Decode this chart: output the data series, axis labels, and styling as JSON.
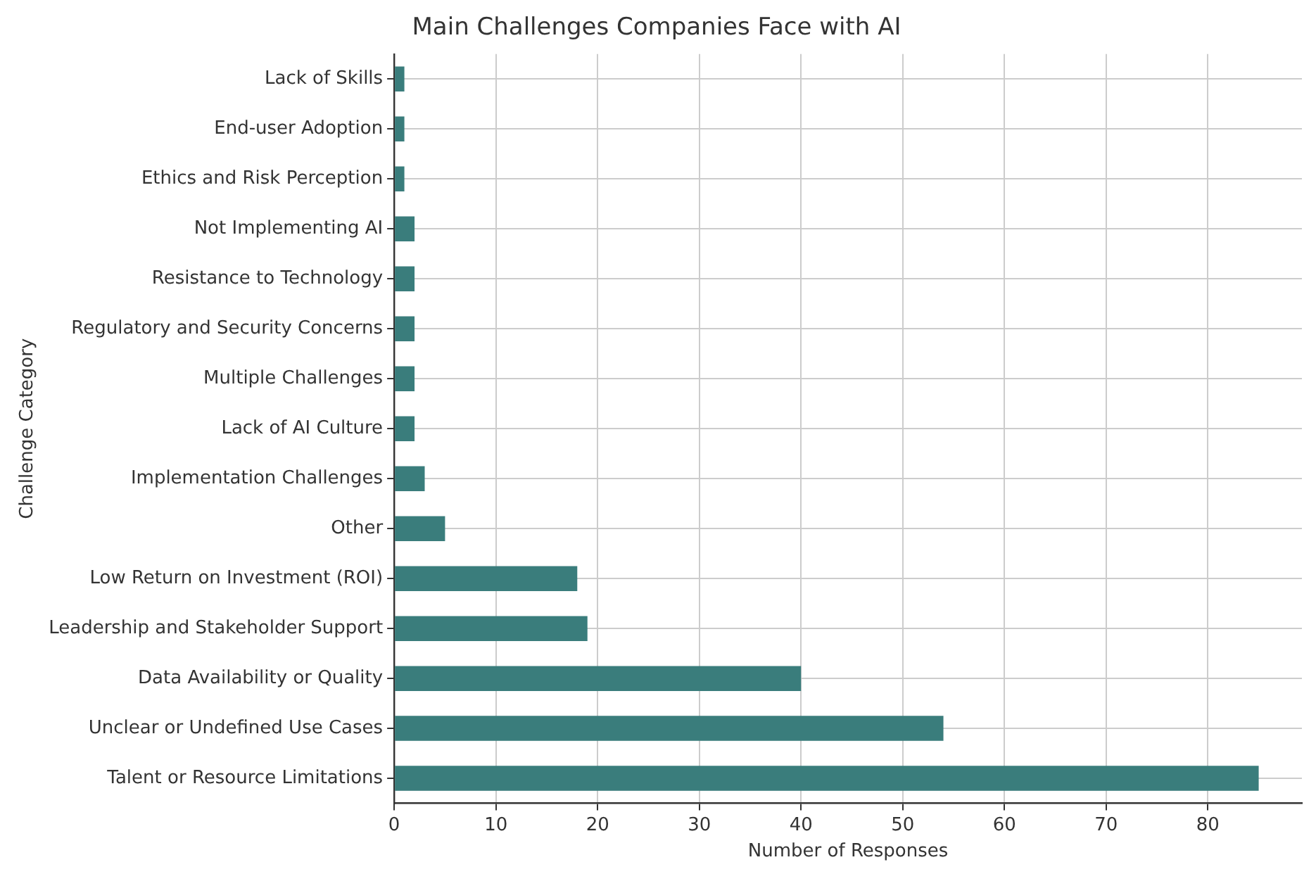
{
  "chart_data": {
    "type": "bar",
    "orientation": "horizontal",
    "title": "Main Challenges Companies Face with AI",
    "xlabel": "Number of Responses",
    "ylabel": "Challenge Category",
    "categories": [
      "Lack of Skills",
      "End-user Adoption",
      "Ethics and Risk Perception",
      "Not Implementing AI",
      "Resistance to Technology",
      "Regulatory and Security Concerns",
      "Multiple Challenges",
      "Lack of AI Culture",
      "Implementation Challenges",
      "Other",
      "Low Return on Investment (ROI)",
      "Leadership and Stakeholder Support",
      "Data Availability or Quality",
      "Unclear or Undefined Use Cases",
      "Talent or Resource Limitations"
    ],
    "values": [
      1,
      1,
      1,
      2,
      2,
      2,
      2,
      2,
      3,
      5,
      18,
      19,
      40,
      54,
      85
    ],
    "color": "#3a7d7c",
    "xlim": [
      0,
      89.25
    ],
    "xticks": [
      0,
      10,
      20,
      30,
      40,
      50,
      60,
      70,
      80
    ],
    "grid": true,
    "legend": false
  }
}
